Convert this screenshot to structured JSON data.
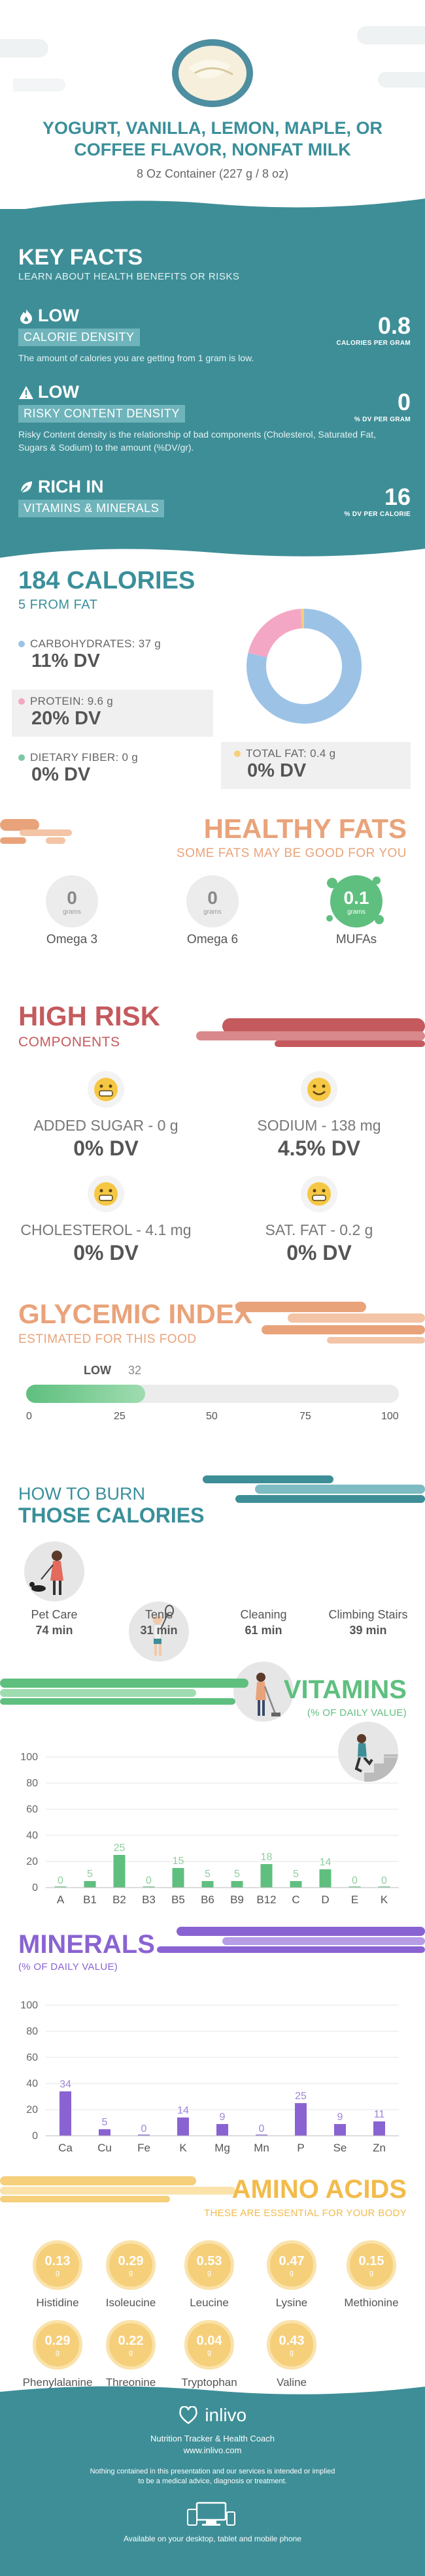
{
  "header": {
    "title": "YOGURT, VANILLA, LEMON, MAPLE, OR COFFEE FLAVOR, NONFAT MILK",
    "subtitle": "8 Oz Container (227 g / 8 oz)"
  },
  "key_facts": {
    "title": "KEY FACTS",
    "subtitle": "LEARN ABOUT HEALTH BENEFITS OR RISKS",
    "facts": [
      {
        "level": "LOW",
        "label": "CALORIE DENSITY",
        "desc": "The amount of calories you are getting from 1 gram is low.",
        "value": "0.8",
        "unit": "CALORIES PER GRAM",
        "icon": "flame-icon"
      },
      {
        "level": "LOW",
        "label": "RISKY CONTENT DENSITY",
        "desc": "Risky Content density is the relationship of bad components (Cholesterol, Saturated Fat, Sugars & Sodium) to the amount (%DV/gr).",
        "value": "0",
        "unit": "% DV PER GRAM",
        "icon": "warning-icon"
      },
      {
        "level": "RICH  IN",
        "label": "VITAMINS & MINERALS",
        "desc": "",
        "value": "16",
        "unit": "% DV PER CALORIE",
        "icon": "leaf-icon"
      }
    ]
  },
  "calories": {
    "title": "184 CALORIES",
    "subtitle": "5 FROM FAT",
    "carbs_label": "CARBOHYDRATES: 37 g",
    "carbs_dv": "11% DV",
    "protein_label": "PROTEIN: 9.6 g",
    "protein_dv": "20% DV",
    "fiber_label": "DIETARY FIBER: 0 g",
    "fiber_dv": "0% DV",
    "fat_label": "TOTAL FAT: 0.4 g",
    "fat_dv": "0% DV",
    "colors": {
      "carbs": "#9cc3e6",
      "protein": "#f4a7c4",
      "fiber": "#7fc6a4",
      "fat": "#f5cf7a"
    }
  },
  "chart_data": [
    {
      "type": "pie",
      "categories": [
        "Carbohydrates",
        "Protein",
        "Fat"
      ],
      "values": [
        37,
        9.6,
        0.4
      ]
    },
    {
      "type": "bar",
      "title": "VITAMINS",
      "subtitle": "(% OF DAILY VALUE)",
      "categories": [
        "A",
        "B1",
        "B2",
        "B3",
        "B5",
        "B6",
        "B9",
        "B12",
        "C",
        "D",
        "E",
        "K"
      ],
      "values": [
        0,
        5,
        25,
        0,
        15,
        5,
        5,
        18,
        5,
        14,
        0,
        0
      ],
      "ylim": [
        0,
        100
      ],
      "yticks": [
        0,
        20,
        40,
        60,
        80,
        100
      ],
      "grid": true
    },
    {
      "type": "bar",
      "title": "MINERALS",
      "subtitle": "(% OF DAILY VALUE)",
      "categories": [
        "Ca",
        "Cu",
        "Fe",
        "K",
        "Mg",
        "Mn",
        "P",
        "Se",
        "Zn"
      ],
      "values": [
        34,
        5,
        0,
        14,
        9,
        0,
        25,
        9,
        11
      ],
      "ylim": [
        0,
        100
      ],
      "yticks": [
        0,
        20,
        40,
        60,
        80,
        100
      ],
      "grid": true
    }
  ],
  "healthy_fats": {
    "title": "HEALTHY FATS",
    "subtitle": "SOME FATS MAY BE GOOD FOR YOU",
    "items": [
      {
        "value": "0",
        "unit": "grams",
        "label": "Omega 3"
      },
      {
        "value": "0",
        "unit": "grams",
        "label": "Omega 6"
      },
      {
        "value": "0.1",
        "unit": "grams",
        "label": "MUFAs"
      }
    ]
  },
  "high_risk": {
    "title": "HIGH RISK",
    "subtitle": "COMPONENTS",
    "items": [
      {
        "label": "ADDED SUGAR - 0 g",
        "dv": "0% DV"
      },
      {
        "label": "SODIUM - 138 mg",
        "dv": "4.5% DV"
      },
      {
        "label": "CHOLESTEROL - 4.1 mg",
        "dv": "0% DV"
      },
      {
        "label": "SAT. FAT - 0.2 g",
        "dv": "0% DV"
      }
    ]
  },
  "glycemic": {
    "title": "GLYCEMIC INDEX",
    "subtitle": "ESTIMATED FOR THIS FOOD",
    "level": "LOW",
    "value": "32",
    "value_num": 32,
    "scale": [
      "0",
      "25",
      "50",
      "75",
      "100"
    ]
  },
  "burn": {
    "title1": "HOW TO BURN",
    "title2": "THOSE CALORIES",
    "items": [
      {
        "label": "Pet Care",
        "minutes": "74 min"
      },
      {
        "label": "Tenis",
        "minutes": "31 min"
      },
      {
        "label": "Cleaning",
        "minutes": "61 min"
      },
      {
        "label": "Climbing Stairs",
        "minutes": "39 min"
      }
    ]
  },
  "amino": {
    "title": "AMINO ACIDS",
    "subtitle": "THESE ARE ESSENTIAL FOR YOUR BODY",
    "unit": "g",
    "items": [
      {
        "value": "0.13",
        "label": "Histidine"
      },
      {
        "value": "0.29",
        "label": "Isoleucine"
      },
      {
        "value": "0.53",
        "label": "Leucine"
      },
      {
        "value": "0.47",
        "label": "Lysine"
      },
      {
        "value": "0.15",
        "label": "Methionine"
      },
      {
        "value": "0.29",
        "label": "Phenylalanine"
      },
      {
        "value": "0.22",
        "label": "Threonine"
      },
      {
        "value": "0.04",
        "label": "Tryptophan"
      },
      {
        "value": "0.43",
        "label": "Valine"
      }
    ]
  },
  "footer": {
    "brand": "inlivo",
    "tagline": "Nutrition Tracker & Health Coach",
    "url": "www.inlivo.com",
    "disclaimer1": "Nothing contained in this presentation and our services is intended or implied",
    "disclaimer2": "to be a medical advice, diagnosis or treatment.",
    "available": "Available on your desktop, tablet and mobile phone"
  },
  "colors": {
    "teal": "#3e8e97",
    "orange": "#e9a37a",
    "red": "#c45a5e",
    "green": "#5fbf7f",
    "purple": "#8a63d2",
    "amber": "#f5cf7a"
  }
}
